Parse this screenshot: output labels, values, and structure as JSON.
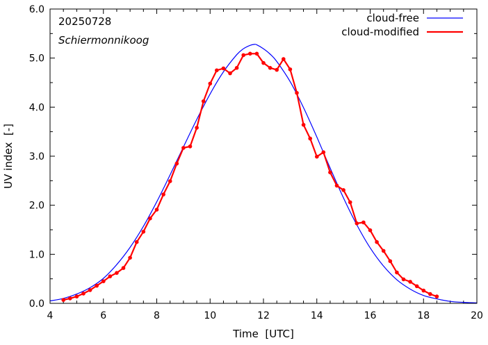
{
  "chart_data": {
    "type": "line",
    "xlabel": "Time  [UTC]",
    "ylabel": "UV index  [-]",
    "xlim": [
      4,
      20
    ],
    "ylim": [
      0,
      6
    ],
    "xticks": [
      4,
      6,
      8,
      10,
      12,
      14,
      16,
      18,
      20
    ],
    "xtick_labels": [
      "4",
      "6",
      "8",
      "10",
      "12",
      "14",
      "16",
      "18",
      "20"
    ],
    "yticks": [
      0,
      1,
      2,
      3,
      4,
      5,
      6
    ],
    "ytick_labels": [
      "0.0",
      "1.0",
      "2.0",
      "3.0",
      "4.0",
      "5.0",
      "6.0"
    ],
    "grid": false,
    "legend_position": "top-right",
    "annotations": [
      "20250728",
      "Schiermonnikoog"
    ],
    "series": [
      {
        "name": "cloud-free",
        "color": "#0000ff",
        "markers": false,
        "x": [
          4.0,
          4.5,
          5.0,
          5.5,
          6.0,
          6.5,
          7.0,
          7.5,
          8.0,
          8.5,
          9.0,
          9.5,
          10.0,
          10.5,
          11.0,
          11.25,
          11.5,
          11.67,
          11.75,
          12.0,
          12.25,
          12.5,
          13.0,
          13.5,
          14.0,
          14.5,
          15.0,
          15.5,
          16.0,
          16.5,
          17.0,
          17.5,
          18.0,
          18.5,
          19.0,
          19.5,
          20.0
        ],
        "y": [
          0.05,
          0.1,
          0.19,
          0.32,
          0.51,
          0.79,
          1.14,
          1.57,
          2.07,
          2.62,
          3.19,
          3.75,
          4.27,
          4.72,
          5.07,
          5.19,
          5.26,
          5.28,
          5.27,
          5.19,
          5.08,
          4.93,
          4.52,
          3.99,
          3.39,
          2.76,
          2.15,
          1.6,
          1.13,
          0.76,
          0.48,
          0.29,
          0.16,
          0.09,
          0.04,
          0.02,
          0.01
        ]
      },
      {
        "name": "cloud-modified",
        "color": "#ff0000",
        "markers": true,
        "x": [
          4.5,
          4.75,
          5.0,
          5.25,
          5.5,
          5.75,
          6.0,
          6.25,
          6.5,
          6.75,
          7.0,
          7.25,
          7.5,
          7.75,
          8.0,
          8.25,
          8.5,
          8.75,
          9.0,
          9.25,
          9.5,
          9.75,
          10.0,
          10.25,
          10.5,
          10.75,
          11.0,
          11.25,
          11.5,
          11.75,
          12.0,
          12.25,
          12.5,
          12.75,
          13.0,
          13.25,
          13.5,
          13.75,
          14.0,
          14.25,
          14.5,
          14.75,
          15.0,
          15.25,
          15.5,
          15.75,
          16.0,
          16.25,
          16.5,
          16.75,
          17.0,
          17.25,
          17.5,
          17.75,
          18.0,
          18.25,
          18.5
        ],
        "y": [
          0.07,
          0.1,
          0.14,
          0.2,
          0.27,
          0.36,
          0.45,
          0.55,
          0.62,
          0.72,
          0.93,
          1.25,
          1.46,
          1.73,
          1.91,
          2.22,
          2.49,
          2.85,
          3.17,
          3.2,
          3.58,
          4.12,
          4.48,
          4.75,
          4.79,
          4.69,
          4.8,
          5.06,
          5.09,
          5.09,
          4.9,
          4.8,
          4.76,
          4.98,
          4.77,
          4.29,
          3.64,
          3.36,
          2.99,
          3.08,
          2.67,
          2.4,
          2.31,
          2.06,
          1.63,
          1.65,
          1.49,
          1.25,
          1.07,
          0.86,
          0.63,
          0.49,
          0.44,
          0.35,
          0.26,
          0.19,
          0.14
        ]
      }
    ]
  }
}
